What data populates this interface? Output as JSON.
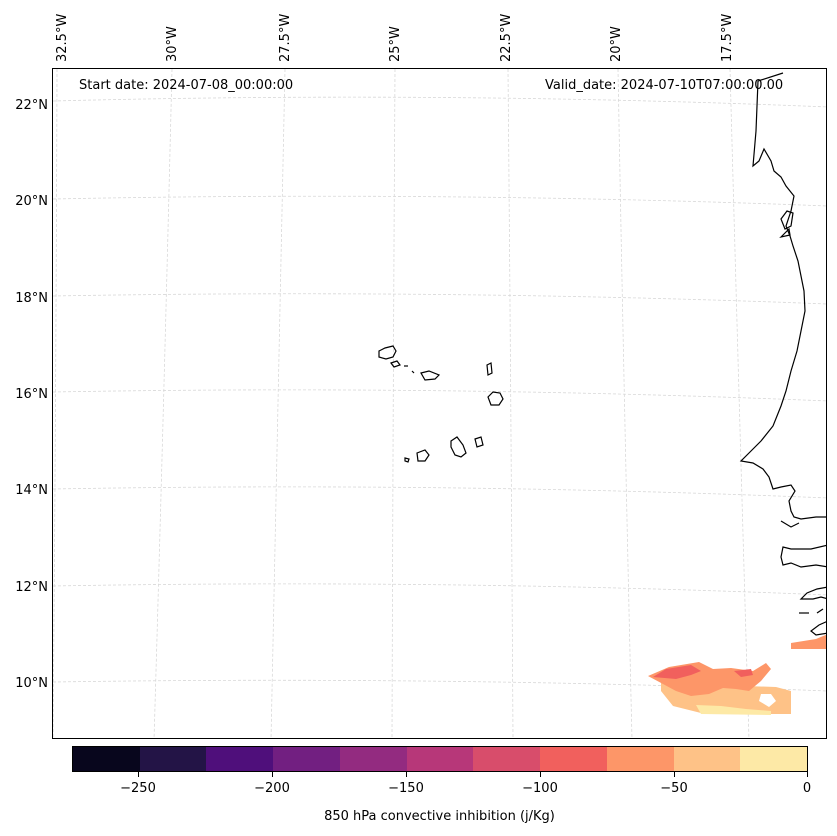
{
  "map": {
    "start_date": "Start date: 2024-07-08_00:00:00",
    "valid_date": "Valid_date: 2024-07-10T07:00:00.00",
    "lon_labels": [
      "32.5°W",
      "30°W",
      "27.5°W",
      "25°W",
      "22.5°W",
      "20°W",
      "17.5°W"
    ],
    "lat_labels": [
      "22°N",
      "20°N",
      "18°N",
      "16°N",
      "14°N",
      "12°N",
      "10°N"
    ],
    "features": [
      "Cape Verde islands",
      "West African coastline (Mauritania, Senegal, Guinea-Bissau, Guinea)"
    ]
  },
  "colorbar": {
    "title": "850 hPa convective inhibition (j/Kg)",
    "ticks": [
      "−250",
      "−200",
      "−150",
      "−100",
      "−50",
      "0"
    ],
    "bins": [
      -275,
      -250,
      -225,
      -200,
      -175,
      -150,
      -125,
      -100,
      -75,
      -50,
      -25,
      0
    ],
    "colors": [
      "#08061d",
      "#231446",
      "#4f0f7b",
      "#721f81",
      "#932b80",
      "#b73779",
      "#d84d6b",
      "#f1605d",
      "#fd9668",
      "#fec287",
      "#fde9a6"
    ]
  }
}
